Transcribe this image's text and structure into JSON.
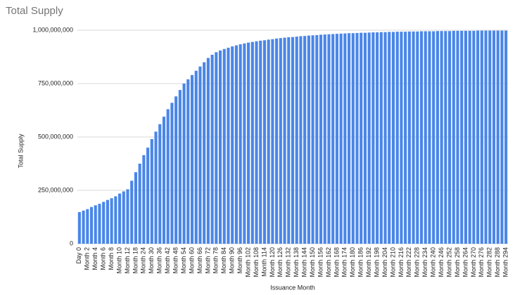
{
  "chart_data": {
    "type": "bar",
    "title": "Total Supply",
    "x_label": "Issuance Month",
    "y_label": "Total Supply",
    "color": "#4a86e8",
    "grid": true,
    "categories": [
      "Day 0",
      null,
      "Month 2",
      null,
      "Month 4",
      null,
      "Month 6",
      null,
      "Month 8",
      null,
      "Month 10",
      null,
      "Month 12",
      null,
      "Month 18",
      null,
      "Month 24",
      null,
      "Month 30",
      null,
      "Month 36",
      null,
      "Month 42",
      null,
      "Month 48",
      null,
      "Month 54",
      null,
      "Month 60",
      null,
      "Month 66",
      null,
      "Month 72",
      null,
      "Month 78",
      null,
      "Month 84",
      null,
      "Month 90",
      null,
      "Month 96",
      null,
      "Month 102",
      null,
      "Month 108",
      null,
      "Month 114",
      null,
      "Month 120",
      null,
      "Month 126",
      null,
      "Month 132",
      null,
      "Month 138",
      null,
      "Month 144",
      null,
      "Month 150",
      null,
      "Month 156",
      null,
      "Month 162",
      null,
      "Month 168",
      null,
      "Month 174",
      null,
      "Month 180",
      null,
      "Month 186",
      null,
      "Month 192",
      null,
      "Month 198",
      null,
      "Month 204",
      null,
      "Month 210",
      null,
      "Month 216",
      null,
      "Month 222",
      null,
      "Month 228",
      null,
      "Month 234",
      null,
      "Month 240",
      null,
      "Month 246",
      null,
      "Month 252",
      null,
      "Month 258",
      null,
      "Month 264",
      null,
      "Month 270",
      null,
      "Month 276",
      null,
      "Month 282",
      null,
      "Month 288",
      null,
      "Month 294"
    ],
    "values": [
      148000000,
      155000000,
      162000000,
      172000000,
      180000000,
      187000000,
      196000000,
      205000000,
      213000000,
      222000000,
      235000000,
      245000000,
      255000000,
      295000000,
      335000000,
      375000000,
      415000000,
      450000000,
      490000000,
      525000000,
      560000000,
      595000000,
      630000000,
      660000000,
      690000000,
      720000000,
      750000000,
      770000000,
      790000000,
      810000000,
      830000000,
      850000000,
      870000000,
      885000000,
      897000000,
      905000000,
      912000000,
      918000000,
      924000000,
      929000000,
      934000000,
      938000000,
      942000000,
      945000000,
      948000000,
      951000000,
      953000000,
      956000000,
      958000000,
      961000000,
      963000000,
      965000000,
      967000000,
      968000000,
      970000000,
      972000000,
      973000000,
      975000000,
      976000000,
      977000000,
      979000000,
      980000000,
      981000000,
      982000000,
      983000000,
      984000000,
      985000000,
      986000000,
      986000000,
      987000000,
      988000000,
      988000000,
      989000000,
      990000000,
      990000000,
      991000000,
      991000000,
      992000000,
      992000000,
      993000000,
      993000000,
      993000000,
      994000000,
      994000000,
      994000000,
      995000000,
      995000000,
      995000000,
      995000000,
      996000000,
      996000000,
      996000000,
      996000000,
      997000000,
      997000000,
      997000000,
      997000000,
      997000000,
      997000000,
      998000000,
      998000000,
      998000000,
      998000000,
      998000000,
      998000000,
      998000000,
      998000000
    ],
    "ylim": [
      0,
      1000000000
    ],
    "yticks": [
      0,
      {
        "value": 250000000,
        "label": "250,000,000"
      },
      {
        "value": 500000000,
        "label": "500,000,000"
      },
      {
        "value": 750000000,
        "label": "750,000,000"
      },
      {
        "value": 1000000000,
        "label": "1,000,000,000"
      }
    ]
  }
}
